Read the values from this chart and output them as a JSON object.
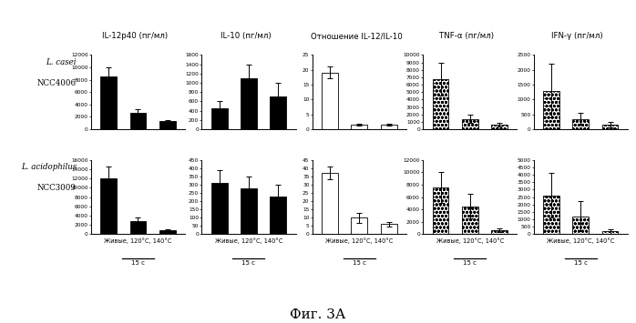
{
  "title": "Фиг. 3А",
  "col_titles": [
    "IL-12p40 (пг/мл)",
    "IL-10 (пг/мл)",
    "Отношение IL-12/IL-10",
    "TNF-α (пг/мл)",
    "IFN-γ (пг/мл)"
  ],
  "row_label1": "L. casei\nNCC4006",
  "row_label2": "L. acidophilus\nNCC3009",
  "xlabel": "Живые, 120°C, 140°C",
  "xlabel_sub": "15 с",
  "rows": [
    {
      "bars": [
        {
          "values": [
            8500,
            2700,
            1300
          ],
          "errors": [
            1500,
            600,
            200
          ],
          "color": "black",
          "ylim": [
            0,
            12000
          ],
          "yticks": [
            0,
            2000,
            4000,
            6000,
            8000,
            10000,
            12000
          ]
        },
        {
          "values": [
            450,
            1100,
            700
          ],
          "errors": [
            150,
            300,
            300
          ],
          "color": "black",
          "ylim": [
            0,
            1600
          ],
          "yticks": [
            0,
            200,
            400,
            600,
            800,
            1000,
            1200,
            1400,
            1600
          ]
        },
        {
          "values": [
            19,
            1.5,
            1.5
          ],
          "errors": [
            2.0,
            0.4,
            0.4
          ],
          "color": "white",
          "ylim": [
            0,
            25
          ],
          "yticks": [
            0,
            5,
            10,
            15,
            20,
            25
          ]
        },
        {
          "values": [
            6700,
            1400,
            600
          ],
          "errors": [
            2200,
            600,
            200
          ],
          "color": "gray_dot",
          "ylim": [
            0,
            10000
          ],
          "yticks": [
            0,
            1000,
            2000,
            3000,
            4000,
            5000,
            6000,
            7000,
            8000,
            9000,
            10000
          ]
        },
        {
          "values": [
            1300,
            350,
            150
          ],
          "errors": [
            900,
            200,
            100
          ],
          "color": "gray_dot",
          "ylim": [
            0,
            2500
          ],
          "yticks": [
            0,
            500,
            1000,
            1500,
            2000,
            2500
          ]
        }
      ]
    },
    {
      "bars": [
        {
          "values": [
            12000,
            2800,
            900
          ],
          "errors": [
            2500,
            800,
            200
          ],
          "color": "black",
          "ylim": [
            0,
            16000
          ],
          "yticks": [
            0,
            2000,
            4000,
            6000,
            8000,
            10000,
            12000,
            14000,
            16000
          ]
        },
        {
          "values": [
            310,
            280,
            230
          ],
          "errors": [
            80,
            70,
            70
          ],
          "color": "black",
          "ylim": [
            0,
            450
          ],
          "yticks": [
            0,
            50,
            100,
            150,
            200,
            250,
            300,
            350,
            400,
            450
          ]
        },
        {
          "values": [
            37,
            10,
            6
          ],
          "errors": [
            4,
            3,
            1.5
          ],
          "color": "white",
          "ylim": [
            0,
            45
          ],
          "yticks": [
            0,
            5,
            10,
            15,
            20,
            25,
            30,
            35,
            40,
            45
          ]
        },
        {
          "values": [
            7500,
            4500,
            600
          ],
          "errors": [
            2500,
            2000,
            300
          ],
          "color": "gray_dot",
          "ylim": [
            0,
            12000
          ],
          "yticks": [
            0,
            2000,
            4000,
            6000,
            8000,
            10000,
            12000
          ]
        },
        {
          "values": [
            2600,
            1200,
            200
          ],
          "errors": [
            1500,
            1000,
            150
          ],
          "color": "gray_dot",
          "ylim": [
            0,
            5000
          ],
          "yticks": [
            0,
            500,
            1000,
            1500,
            2000,
            2500,
            3000,
            3500,
            4000,
            4500,
            5000
          ]
        }
      ]
    }
  ],
  "bg_color": "white",
  "bar_width": 0.55
}
